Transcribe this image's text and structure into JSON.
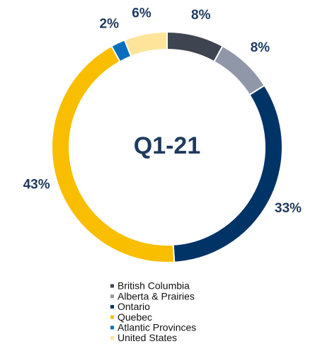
{
  "chart_data": {
    "type": "donut",
    "center_label": "Q1-21",
    "categories": [
      "British Columbia",
      "Alberta & Prairies",
      "Ontario",
      "Quebec",
      "Atlantic Provinces",
      "United States"
    ],
    "values": [
      8,
      8,
      33,
      43,
      2,
      6
    ],
    "value_labels": [
      "8%",
      "8%",
      "33%",
      "43%",
      "2%",
      "6%"
    ],
    "colors": [
      "#3f4451",
      "#8f97a8",
      "#003366",
      "#f9be00",
      "#0a6ebd",
      "#fde49a"
    ],
    "legend": "bottom"
  }
}
